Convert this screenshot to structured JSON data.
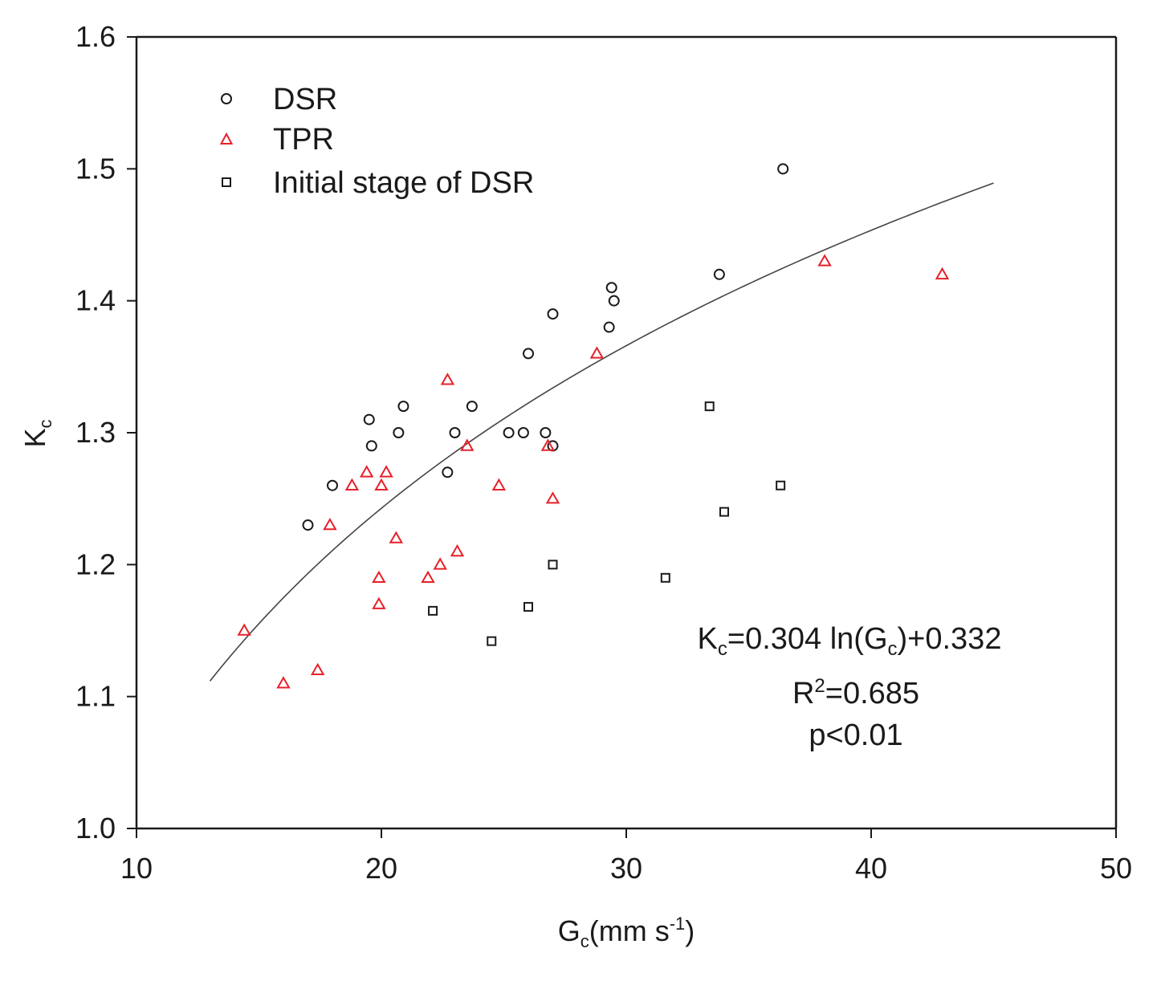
{
  "chart_data": {
    "type": "scatter",
    "title": "",
    "xlabel": {
      "main": "G",
      "sub": "c",
      "rest": "(mm s",
      "sup": "-1",
      "close": ")"
    },
    "ylabel": {
      "main": "K",
      "sub": "c"
    },
    "xlim": [
      10,
      50
    ],
    "ylim": [
      1.0,
      1.6
    ],
    "x_ticks": [
      10,
      20,
      30,
      40,
      50
    ],
    "y_ticks": [
      1.0,
      1.1,
      1.2,
      1.3,
      1.4,
      1.5,
      1.6
    ],
    "x_tick_labels": [
      "10",
      "20",
      "30",
      "40",
      "50"
    ],
    "y_tick_labels": [
      "1.0",
      "1.1",
      "1.2",
      "1.3",
      "1.4",
      "1.5",
      "1.6"
    ],
    "grid": false,
    "legend_position": "top-left",
    "series": [
      {
        "name": "DSR",
        "marker": "circle",
        "color": "#1a1a1a",
        "points": [
          [
            17.0,
            1.23
          ],
          [
            18.0,
            1.26
          ],
          [
            19.5,
            1.31
          ],
          [
            19.6,
            1.29
          ],
          [
            20.7,
            1.3
          ],
          [
            20.9,
            1.32
          ],
          [
            22.7,
            1.27
          ],
          [
            23.0,
            1.3
          ],
          [
            23.7,
            1.32
          ],
          [
            25.2,
            1.3
          ],
          [
            25.8,
            1.3
          ],
          [
            26.0,
            1.36
          ],
          [
            26.7,
            1.3
          ],
          [
            27.0,
            1.29
          ],
          [
            27.0,
            1.39
          ],
          [
            29.3,
            1.38
          ],
          [
            29.4,
            1.41
          ],
          [
            29.5,
            1.4
          ],
          [
            33.8,
            1.42
          ],
          [
            36.4,
            1.5
          ]
        ]
      },
      {
        "name": "TPR",
        "marker": "triangle",
        "color": "#e8202a",
        "points": [
          [
            14.4,
            1.15
          ],
          [
            16.0,
            1.11
          ],
          [
            17.4,
            1.12
          ],
          [
            17.9,
            1.23
          ],
          [
            18.8,
            1.26
          ],
          [
            19.4,
            1.27
          ],
          [
            19.9,
            1.19
          ],
          [
            19.9,
            1.17
          ],
          [
            20.0,
            1.26
          ],
          [
            20.2,
            1.27
          ],
          [
            20.6,
            1.22
          ],
          [
            21.9,
            1.19
          ],
          [
            22.4,
            1.2
          ],
          [
            22.7,
            1.34
          ],
          [
            23.1,
            1.21
          ],
          [
            23.5,
            1.29
          ],
          [
            24.8,
            1.26
          ],
          [
            26.8,
            1.29
          ],
          [
            27.0,
            1.25
          ],
          [
            28.8,
            1.36
          ],
          [
            38.1,
            1.43
          ],
          [
            42.9,
            1.42
          ]
        ]
      },
      {
        "name": "Initial stage of DSR",
        "marker": "square",
        "color": "#1a1a1a",
        "points": [
          [
            22.1,
            1.165
          ],
          [
            24.5,
            1.142
          ],
          [
            26.0,
            1.168
          ],
          [
            27.0,
            1.2
          ],
          [
            31.6,
            1.19
          ],
          [
            33.4,
            1.32
          ],
          [
            34.0,
            1.24
          ],
          [
            36.3,
            1.26
          ]
        ]
      }
    ],
    "fit": {
      "equation": "Kc = 0.304 ln(Gc) + 0.332",
      "a": 0.304,
      "b": 0.332,
      "x_range": [
        13,
        45
      ],
      "color": "#444444"
    },
    "annotations": {
      "equation": {
        "k": "K",
        "k_sub": "c",
        "mid": "=0.304 ln(G",
        "g_sub": "c",
        "end": ")+0.332"
      },
      "r2": {
        "r": "R",
        "sup": "2",
        "rest": "=0.685"
      },
      "p": "p<0.01"
    }
  }
}
